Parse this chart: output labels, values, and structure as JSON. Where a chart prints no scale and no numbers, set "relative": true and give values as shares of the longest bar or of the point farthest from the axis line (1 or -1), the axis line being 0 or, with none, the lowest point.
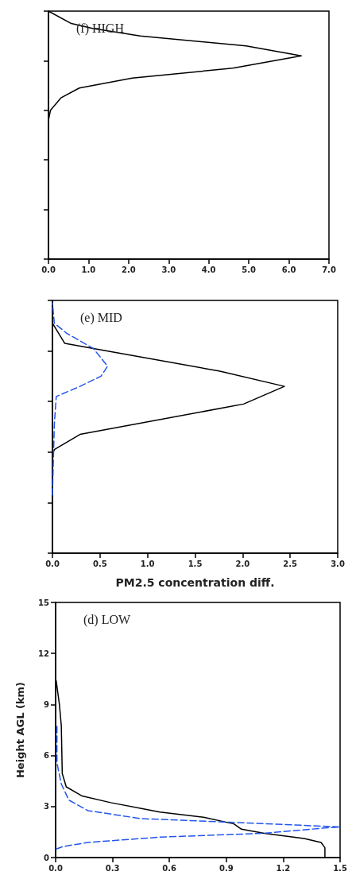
{
  "chart_data": [
    {
      "type": "line",
      "title": "(f) HIGH",
      "marker": "none",
      "tick_labels": "x",
      "grid": false,
      "xlim": [
        0,
        7
      ],
      "xticks": [
        {
          "value": 0,
          "label": "0.0"
        },
        {
          "value": 1,
          "label": "1.0"
        },
        {
          "value": 2,
          "label": "2.0"
        },
        {
          "value": 3,
          "label": "3.0"
        },
        {
          "value": 4,
          "label": "4.0"
        },
        {
          "value": 5,
          "label": "5.0"
        },
        {
          "value": 6,
          "label": "6.0"
        },
        {
          "value": 7,
          "label": "7.0"
        }
      ],
      "relative": true,
      "series": [
        {
          "color": "#000000",
          "line_style": "solid",
          "x": [
            0,
            0,
            0.05,
            0.31,
            0.77,
            2.09,
            4.6,
            6.31,
            4.93,
            2.29,
            1.1,
            0.57,
            0
          ],
          "values": [
            0,
            0.56,
            0.6,
            0.65,
            0.69,
            0.73,
            0.77,
            0.82,
            0.86,
            0.9,
            0.93,
            0.95,
            1
          ]
        }
      ]
    },
    {
      "type": "line",
      "title": "(e) MID",
      "xlabel": "PM2.5 concentration diff.",
      "marker": "none",
      "tick_labels": "x",
      "grid": false,
      "xlim": [
        0,
        3
      ],
      "xticks": [
        {
          "value": 0,
          "label": "0.0"
        },
        {
          "value": 0.5,
          "label": "0.5"
        },
        {
          "value": 1,
          "label": "1.0"
        },
        {
          "value": 1.5,
          "label": "1.5"
        },
        {
          "value": 2,
          "label": "2.0"
        },
        {
          "value": 2.5,
          "label": "2.5"
        },
        {
          "value": 3,
          "label": "3.0"
        }
      ],
      "relative": true,
      "series": [
        {
          "color": "#000000",
          "line_style": "solid",
          "x": [
            0,
            0,
            0.02,
            0.29,
            2.01,
            2.44,
            1.76,
            0.43,
            0.13,
            0,
            0
          ],
          "values": [
            0,
            0.39,
            0.41,
            0.47,
            0.59,
            0.66,
            0.72,
            0.81,
            0.83,
            0.91,
            1
          ]
        },
        {
          "color": "#2255ee",
          "line_style": "dashed",
          "x": [
            0,
            0.01,
            0.02,
            0.04,
            0.29,
            0.51,
            0.58,
            0.43,
            0.15,
            0.02,
            0
          ],
          "values": [
            0.23,
            0.37,
            0.51,
            0.62,
            0.66,
            0.7,
            0.74,
            0.81,
            0.87,
            0.91,
            0.99
          ]
        }
      ]
    },
    {
      "type": "line",
      "title": "(d) LOW",
      "ylabel": "Height AGL (km)",
      "marker": "none",
      "grid": false,
      "xlim": [
        0,
        1.5
      ],
      "xticks": [
        {
          "value": 0,
          "label": "0.0"
        },
        {
          "value": 0.3,
          "label": "0.3"
        },
        {
          "value": 0.6,
          "label": "0.6"
        },
        {
          "value": 0.9,
          "label": "0.9"
        },
        {
          "value": 1.2,
          "label": "1.2"
        },
        {
          "value": 1.5,
          "label": "1.5"
        }
      ],
      "ylim": [
        0,
        15
      ],
      "yticks": [
        0,
        3,
        6,
        9,
        12,
        15
      ],
      "series": [
        {
          "color": "#000000",
          "line_style": "solid",
          "x": [
            1.42,
            1.42,
            1.42,
            1.4,
            1.31,
            1.1,
            0.98,
            0.94,
            0.78,
            0.55,
            0.29,
            0.14,
            0.056,
            0.035,
            0.03,
            0.02,
            0.003
          ],
          "values": [
            0,
            0.1,
            0.58,
            0.89,
            1.12,
            1.43,
            1.67,
            1.98,
            2.37,
            2.68,
            3.23,
            3.62,
            4.16,
            4.94,
            7.75,
            9.0,
            10.4
          ]
        },
        {
          "color": "#2255ee",
          "line_style": "dashed",
          "x": [
            0.003,
            0.04,
            0.17,
            0.55,
            1.1,
            1.43,
            1.5,
            0.96,
            0.45,
            0.17,
            0.07,
            0.03,
            0.007,
            0.007
          ],
          "values": [
            0.5,
            0.65,
            0.89,
            1.2,
            1.43,
            1.75,
            1.8,
            2.06,
            2.29,
            2.76,
            3.38,
            4.32,
            5.57,
            7.75
          ]
        }
      ]
    }
  ]
}
